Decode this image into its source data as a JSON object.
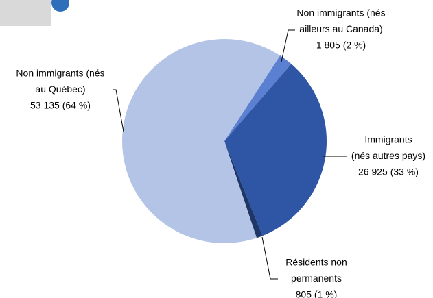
{
  "chart_data": {
    "type": "pie",
    "categories": [
      [
        "Non immigrants (nés",
        "ailleurs au Canada)"
      ],
      [
        "Immigrants",
        "(nés autres pays)"
      ],
      [
        "Résidents non",
        "permanents"
      ],
      [
        "Non immigrants (nés",
        "au Québec)"
      ]
    ],
    "values": [
      1805,
      26925,
      805,
      53135
    ],
    "value_labels": [
      "1 805 (2 %)",
      "26 925 (33 %)",
      "805 (1 %)",
      "53 135 (64 %)"
    ],
    "colors": [
      "#5b7fd1",
      "#2f56a4",
      "#1e3768",
      "#b4c4e7"
    ]
  }
}
